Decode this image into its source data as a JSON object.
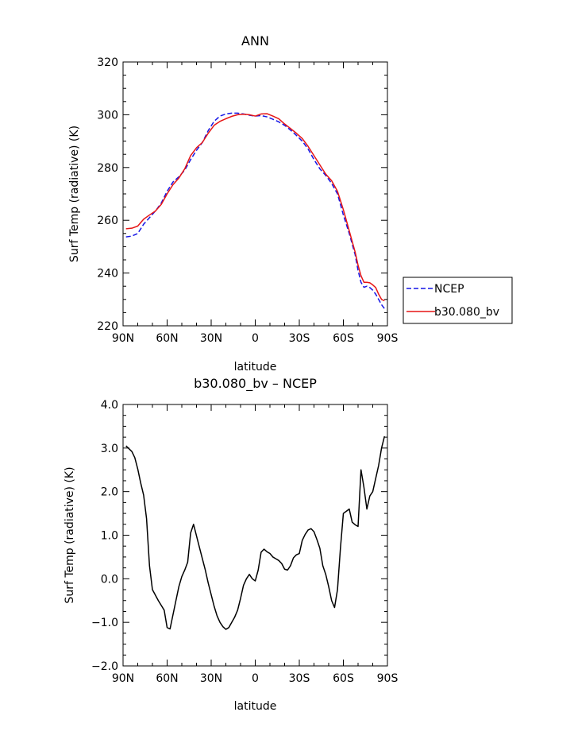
{
  "chart_data": [
    {
      "type": "line",
      "title": "ANN",
      "xlabel": "latitude",
      "ylabel": "Surf Temp (radiative) (K)",
      "xlim": [
        -90,
        90
      ],
      "ylim": [
        220,
        320
      ],
      "x_ticks": [
        -90,
        -60,
        -30,
        0,
        30,
        60,
        90
      ],
      "x_tick_labels": [
        "90N",
        "60N",
        "30N",
        "0",
        "30S",
        "60S",
        "90S"
      ],
      "y_ticks": [
        220,
        240,
        260,
        280,
        300,
        320
      ],
      "y_tick_labels": [
        "220",
        "240",
        "260",
        "280",
        "300",
        "320"
      ],
      "grid": false,
      "legend_position": "right",
      "series": [
        {
          "name": "NCEP",
          "color": "#1515e6",
          "dash": "dashed",
          "x": [
            -88,
            -84,
            -80,
            -76,
            -72,
            -68,
            -64,
            -60,
            -56,
            -52,
            -48,
            -44,
            -40,
            -36,
            -32,
            -28,
            -24,
            -20,
            -16,
            -12,
            -8,
            -4,
            0,
            4,
            8,
            12,
            16,
            20,
            24,
            28,
            32,
            36,
            40,
            44,
            48,
            52,
            56,
            60,
            64,
            68,
            70,
            72,
            74,
            76,
            78,
            80,
            82,
            84,
            86,
            88
          ],
          "y": [
            253.7,
            254.0,
            255.0,
            258.5,
            261.0,
            263.5,
            266.5,
            271.0,
            274.5,
            276.5,
            279.0,
            283.0,
            286.5,
            289.5,
            294.0,
            297.5,
            299.5,
            300.3,
            300.6,
            300.6,
            300.3,
            299.8,
            299.5,
            299.7,
            299.2,
            298.3,
            297.3,
            296.0,
            294.2,
            292.2,
            290.0,
            287.0,
            283.0,
            279.5,
            277.0,
            274.0,
            270.0,
            262.0,
            255.0,
            247.0,
            241.0,
            236.5,
            234.6,
            235.0,
            234.5,
            233.5,
            232.0,
            230.0,
            228.0,
            226.5
          ]
        },
        {
          "name": "b30.080_bv",
          "color": "#e61515",
          "dash": "solid",
          "x": [
            -88,
            -84,
            -80,
            -76,
            -72,
            -68,
            -64,
            -60,
            -56,
            -52,
            -48,
            -44,
            -40,
            -36,
            -32,
            -28,
            -24,
            -20,
            -16,
            -12,
            -8,
            -4,
            0,
            4,
            8,
            12,
            16,
            20,
            24,
            28,
            32,
            36,
            40,
            44,
            48,
            52,
            56,
            60,
            64,
            68,
            70,
            72,
            74,
            76,
            78,
            80,
            82,
            84,
            86,
            88
          ],
          "y": [
            256.8,
            257.0,
            257.8,
            260.4,
            262.0,
            263.5,
            266.0,
            270.0,
            273.5,
            276.0,
            279.5,
            284.5,
            287.5,
            289.5,
            293.0,
            296.0,
            297.5,
            298.5,
            299.4,
            300.0,
            300.2,
            300.0,
            299.5,
            300.3,
            300.4,
            299.5,
            298.5,
            296.5,
            294.8,
            293.0,
            291.0,
            288.0,
            284.5,
            281.0,
            277.5,
            275.0,
            271.0,
            264.0,
            256.0,
            248.0,
            243.0,
            239.0,
            236.5,
            236.5,
            236.3,
            235.5,
            234.5,
            232.0,
            230.0,
            229.5
          ]
        }
      ]
    },
    {
      "type": "line",
      "title": "b30.080_bv – NCEP",
      "xlabel": "latitude",
      "ylabel": "Surf Temp (radiative) (K)",
      "xlim": [
        -90,
        90
      ],
      "ylim": [
        -2,
        4
      ],
      "x_ticks": [
        -90,
        -60,
        -30,
        0,
        30,
        60,
        90
      ],
      "x_tick_labels": [
        "90N",
        "60N",
        "30N",
        "0",
        "30S",
        "60S",
        "90S"
      ],
      "y_ticks": [
        -2,
        -1,
        0,
        1,
        2,
        3,
        4
      ],
      "y_tick_labels": [
        "−2.0",
        "−1.0",
        "0.0",
        "1.0",
        "2.0",
        "3.0",
        "4.0"
      ],
      "grid": false,
      "series": [
        {
          "color": "#000000",
          "dash": "solid",
          "x": [
            -88,
            -84,
            -82,
            -80,
            -78,
            -76,
            -74,
            -72,
            -70,
            -66,
            -62,
            -60,
            -58,
            -54,
            -52,
            -50,
            -48,
            -46,
            -44,
            -42,
            -38,
            -34,
            -32,
            -28,
            -26,
            -24,
            -22,
            -20,
            -18,
            -16,
            -14,
            -12,
            -10,
            -8,
            -6,
            -4,
            -2,
            0,
            2,
            4,
            6,
            8,
            10,
            12,
            14,
            16,
            18,
            20,
            22,
            24,
            26,
            28,
            30,
            32,
            34,
            36,
            38,
            40,
            42,
            44,
            46,
            48,
            50,
            52,
            54,
            56,
            58,
            60,
            62,
            64,
            66,
            68,
            70,
            72,
            74,
            76,
            78,
            80,
            82,
            84,
            86,
            88
          ],
          "y": [
            3.05,
            2.92,
            2.78,
            2.52,
            2.2,
            1.92,
            1.38,
            0.3,
            -0.25,
            -0.5,
            -0.72,
            -1.12,
            -1.15,
            -0.5,
            -0.18,
            0.05,
            0.2,
            0.38,
            1.05,
            1.25,
            0.72,
            0.2,
            -0.1,
            -0.63,
            -0.85,
            -1.0,
            -1.1,
            -1.16,
            -1.12,
            -1.0,
            -0.88,
            -0.72,
            -0.45,
            -0.15,
            0.0,
            0.1,
            0.0,
            -0.05,
            0.2,
            0.61,
            0.68,
            0.62,
            0.58,
            0.5,
            0.46,
            0.42,
            0.35,
            0.22,
            0.2,
            0.3,
            0.48,
            0.55,
            0.58,
            0.88,
            1.02,
            1.12,
            1.15,
            1.08,
            0.9,
            0.7,
            0.3,
            0.1,
            -0.18,
            -0.5,
            -0.66,
            -0.25,
            0.7,
            1.5,
            1.55,
            1.6,
            1.3,
            1.24,
            1.2,
            2.5,
            2.1,
            1.6,
            1.9,
            2.0,
            2.3,
            2.6,
            3.0,
            3.27
          ]
        }
      ]
    }
  ],
  "legend": [
    {
      "label": "NCEP"
    },
    {
      "label": "b30.080_bv"
    }
  ]
}
